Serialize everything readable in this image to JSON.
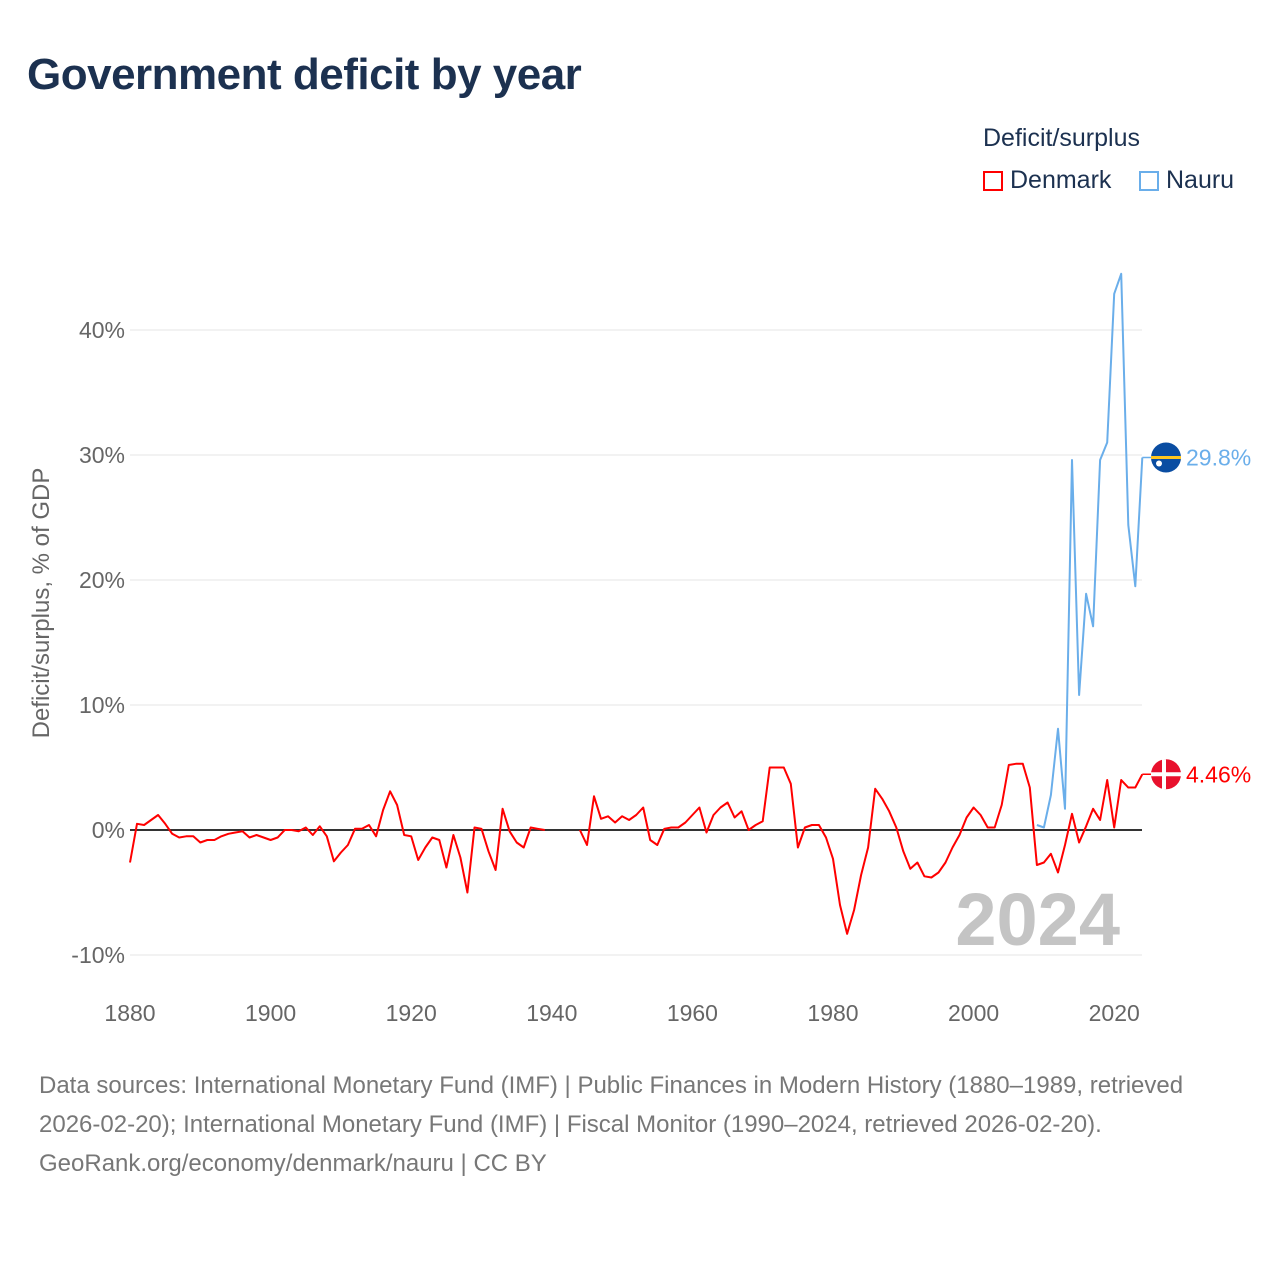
{
  "title": "Government deficit by year",
  "legend": {
    "title": "Deficit/surplus",
    "items": [
      {
        "label": "Denmark",
        "color": "#ff0000"
      },
      {
        "label": "Nauru",
        "color": "#6aaeea"
      }
    ]
  },
  "footer": {
    "sources": "Data sources: International Monetary Fund (IMF) | Public Finances in Modern History (1880–1989, retrieved 2026-02-20); International Monetary Fund (IMF) | Fiscal Monitor (1990–2024, retrieved 2026-02-20).",
    "credit": "GeoRank.org/economy/denmark/nauru | CC BY"
  },
  "chart_data": {
    "type": "line",
    "title": "Government deficit by year",
    "xlabel": "",
    "ylabel": "Deficit/surplus, % of GDP",
    "xlim": [
      1880,
      2024
    ],
    "ylim": [
      -10,
      45
    ],
    "x_ticks": [
      1880,
      1900,
      1920,
      1940,
      1960,
      1980,
      2000,
      2020
    ],
    "y_ticks": [
      -10,
      0,
      10,
      20,
      30,
      40
    ],
    "y_tick_labels": [
      "-10%",
      "0%",
      "10%",
      "20%",
      "30%",
      "40%"
    ],
    "grid": true,
    "legend_position": "top-right",
    "year_watermark": "2024",
    "series": [
      {
        "name": "Denmark",
        "color": "#ff0000",
        "start_year": 1880,
        "end_label": "4.46%",
        "values": [
          -2.6,
          0.5,
          0.4,
          0.8,
          1.2,
          0.5,
          -0.3,
          -0.6,
          -0.5,
          -0.5,
          -1.0,
          -0.8,
          -0.8,
          -0.5,
          -0.3,
          -0.2,
          -0.1,
          -0.6,
          -0.4,
          -0.6,
          -0.8,
          -0.6,
          0,
          0,
          -0.1,
          0.2,
          -0.4,
          0.3,
          -0.5,
          -2.5,
          -1.8,
          -1.2,
          0.1,
          0.1,
          0.4,
          -0.5,
          1.6,
          3.1,
          2.0,
          -0.4,
          -0.5,
          -2.4,
          -1.4,
          -0.6,
          -0.8,
          -3.0,
          -0.4,
          -2.2,
          -5.0,
          0.2,
          0.1,
          -1.7,
          -3.2,
          1.7,
          -0.1,
          -1.0,
          -1.4,
          0.2,
          0.1,
          0,
          null,
          null,
          null,
          null,
          0,
          -1.2,
          2.7,
          0.9,
          1.1,
          0.6,
          1.1,
          0.8,
          1.2,
          1.8,
          -0.8,
          -1.2,
          0.1,
          0.2,
          0.2,
          0.6,
          1.2,
          1.8,
          -0.2,
          1.2,
          1.8,
          2.2,
          1.0,
          1.5,
          0,
          0.4,
          0.7,
          5.0,
          5.0,
          5.0,
          3.7,
          -1.4,
          0.2,
          0.4,
          0.4,
          -0.6,
          -2.3,
          -6.0,
          -8.3,
          -6.4,
          -3.6,
          -1.4,
          3.3,
          2.5,
          1.5,
          0.2,
          -1.7,
          -3.1,
          -2.6,
          -3.7,
          -3.8,
          -3.4,
          -2.6,
          -1.4,
          -0.4,
          1.0,
          1.8,
          1.2,
          0.2,
          0.2,
          2.0,
          5.2,
          5.3,
          5.3,
          3.4,
          -2.8,
          -2.6,
          -1.9,
          -3.4,
          -1.2,
          1.3,
          -1.0,
          0.3,
          1.7,
          0.8,
          4.0,
          0.2,
          4.0,
          3.4,
          3.4,
          4.46
        ]
      },
      {
        "name": "Nauru",
        "color": "#6aaeea",
        "start_year": 2009,
        "end_label": "29.8%",
        "values": [
          0.4,
          0.2,
          2.8,
          8.1,
          1.7,
          29.6,
          10.8,
          18.9,
          16.3,
          29.6,
          31.0,
          42.9,
          44.5,
          24.4,
          19.5,
          29.8
        ]
      }
    ]
  }
}
